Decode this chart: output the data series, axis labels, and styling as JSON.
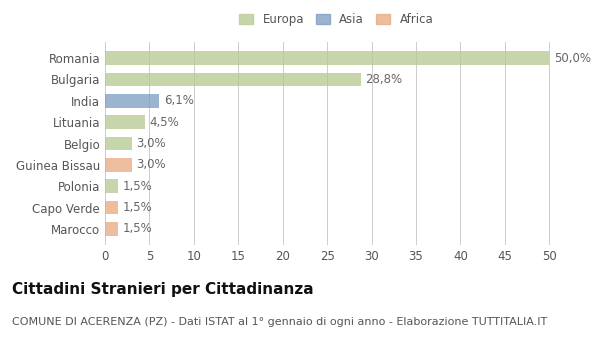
{
  "categories": [
    "Marocco",
    "Capo Verde",
    "Polonia",
    "Guinea Bissau",
    "Belgio",
    "Lituania",
    "India",
    "Bulgaria",
    "Romania"
  ],
  "values": [
    1.5,
    1.5,
    1.5,
    3.0,
    3.0,
    4.5,
    6.1,
    28.8,
    50.0
  ],
  "colors": [
    "#e8a87c",
    "#e8a87c",
    "#b5c98e",
    "#e8a87c",
    "#b5c98e",
    "#b5c98e",
    "#7a9bbf",
    "#b5c98e",
    "#b5c98e"
  ],
  "labels": [
    "1,5%",
    "1,5%",
    "1,5%",
    "3,0%",
    "3,0%",
    "4,5%",
    "6,1%",
    "28,8%",
    "50,0%"
  ],
  "xlim": [
    0,
    52
  ],
  "xticks": [
    0,
    5,
    10,
    15,
    20,
    25,
    30,
    35,
    40,
    45,
    50
  ],
  "legend": [
    {
      "label": "Europa",
      "color": "#b5c98e"
    },
    {
      "label": "Asia",
      "color": "#7a9bbf"
    },
    {
      "label": "Africa",
      "color": "#e8a87c"
    }
  ],
  "title": "Cittadini Stranieri per Cittadinanza",
  "subtitle": "COMUNE DI ACERENZA (PZ) - Dati ISTAT al 1° gennaio di ogni anno - Elaborazione TUTTITALIA.IT",
  "bg_color": "#ffffff",
  "grid_color": "#cccccc",
  "bar_alpha": 0.75,
  "title_fontsize": 11,
  "subtitle_fontsize": 8,
  "label_fontsize": 8.5,
  "tick_fontsize": 8.5
}
